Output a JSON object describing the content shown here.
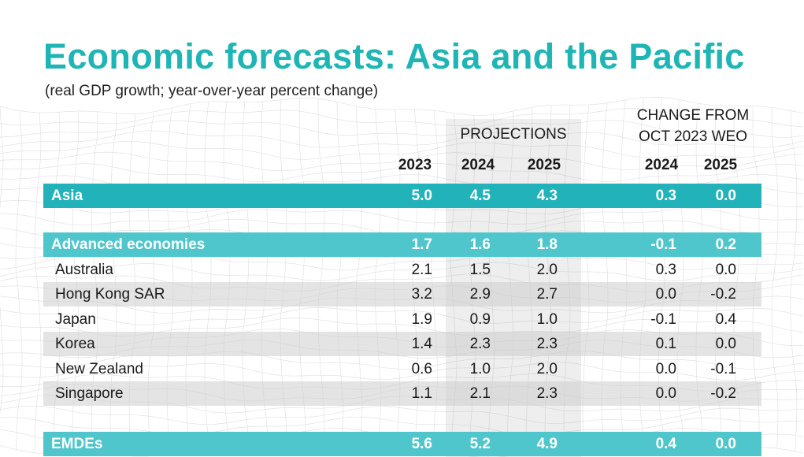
{
  "title": "Economic forecasts: Asia and the Pacific",
  "subtitle": "(real GDP growth; year-over-year percent change)",
  "headers": {
    "projections": "PROJECTIONS",
    "change_line1": "CHANGE FROM",
    "change_line2": "OCT 2023 WEO",
    "years": [
      "2023",
      "2024",
      "2025"
    ],
    "change_years": [
      "2024",
      "2025"
    ]
  },
  "colors": {
    "title": "#20b5b5",
    "aggregate_row": "#21b3b9",
    "group_row": "#4fc6cc",
    "shaded_row": "#e4e4e4"
  },
  "chart_data": {
    "type": "table",
    "title": "Economic forecasts: Asia and the Pacific",
    "subtitle": "(real GDP growth; year-over-year percent change)",
    "columns": [
      "",
      "2023",
      "2024",
      "2025",
      "2024",
      "2025"
    ],
    "column_groups": [
      {
        "label": "PROJECTIONS",
        "columns": [
          "2024",
          "2025"
        ]
      },
      {
        "label": "CHANGE FROM OCT 2023 WEO",
        "columns": [
          "2024",
          "2025"
        ]
      }
    ],
    "rows": [
      {
        "name": "Asia",
        "style": "aggregate",
        "values": [
          "5.0",
          "4.5",
          "4.3",
          "0.3",
          "0.0"
        ]
      },
      {
        "name": "Advanced economies",
        "style": "group",
        "values": [
          "1.7",
          "1.6",
          "1.8",
          "-0.1",
          "0.2"
        ]
      },
      {
        "name": "Australia",
        "style": "country",
        "values": [
          "2.1",
          "1.5",
          "2.0",
          "0.3",
          "0.0"
        ]
      },
      {
        "name": "Hong Kong SAR",
        "style": "country",
        "values": [
          "3.2",
          "2.9",
          "2.7",
          "0.0",
          "-0.2"
        ]
      },
      {
        "name": "Japan",
        "style": "country",
        "values": [
          "1.9",
          "0.9",
          "1.0",
          "-0.1",
          "0.4"
        ]
      },
      {
        "name": "Korea",
        "style": "country",
        "values": [
          "1.4",
          "2.3",
          "2.3",
          "0.1",
          "0.0"
        ]
      },
      {
        "name": "New Zealand",
        "style": "country",
        "values": [
          "0.6",
          "1.0",
          "2.0",
          "0.0",
          "-0.1"
        ]
      },
      {
        "name": "Singapore",
        "style": "country",
        "values": [
          "1.1",
          "2.1",
          "2.3",
          "0.0",
          "-0.2"
        ]
      },
      {
        "name": "EMDEs",
        "style": "group",
        "values": [
          "5.6",
          "5.2",
          "4.9",
          "0.4",
          "0.0"
        ]
      }
    ]
  }
}
